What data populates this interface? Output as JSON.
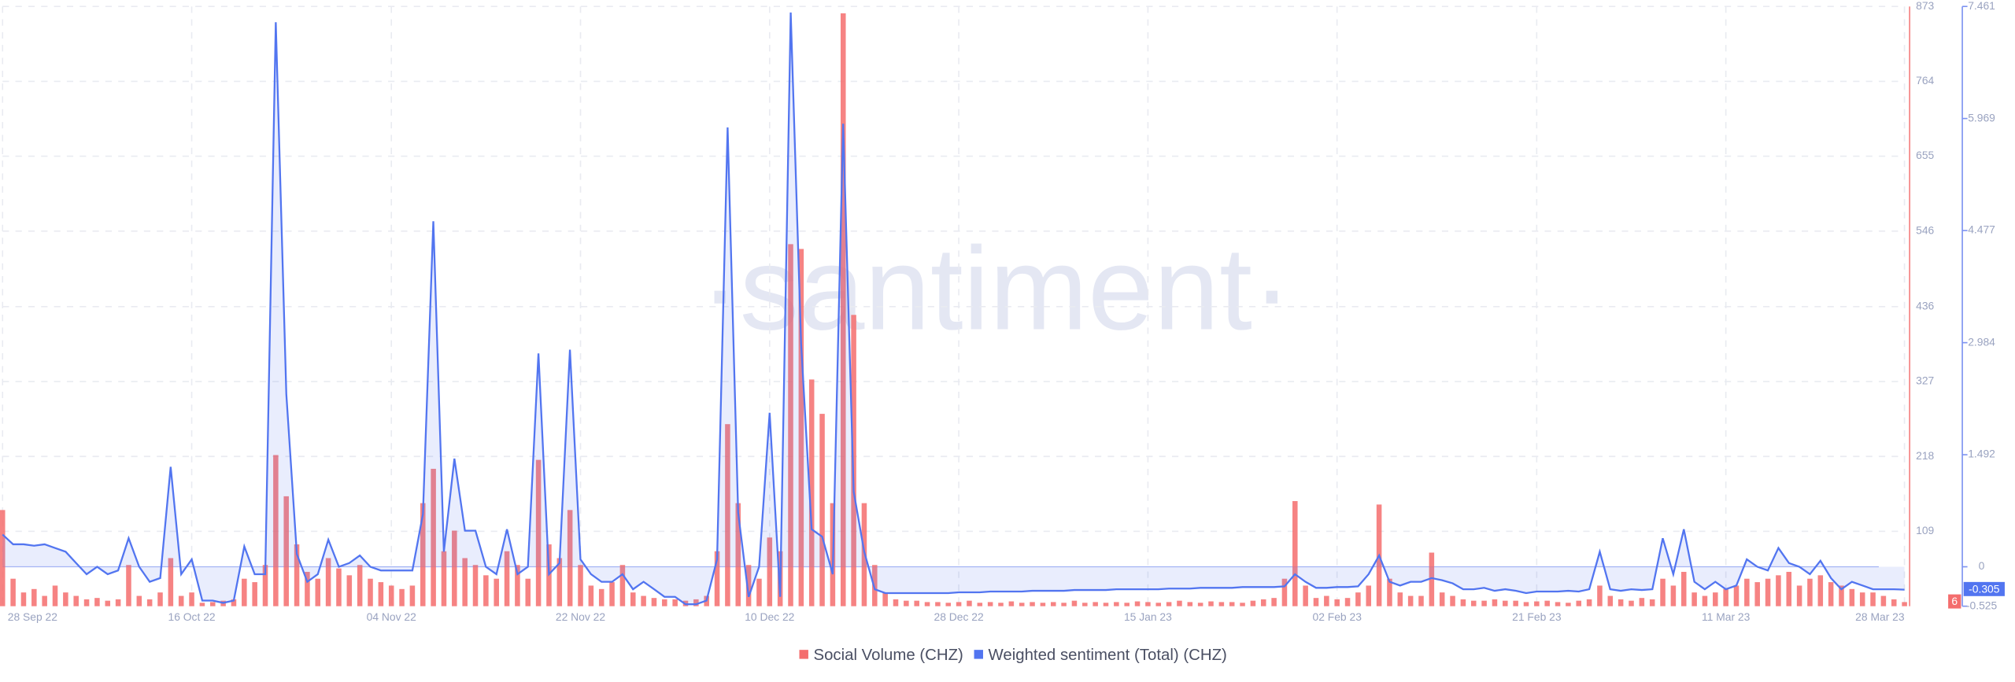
{
  "chart_data": {
    "type": "combo",
    "watermark": "·santiment·",
    "categories": [
      "28 Sep 22",
      null,
      null,
      null,
      null,
      null,
      null,
      null,
      null,
      null,
      null,
      null,
      null,
      null,
      null,
      null,
      null,
      null,
      "16 Oct 22",
      null,
      null,
      null,
      null,
      null,
      null,
      null,
      null,
      null,
      null,
      null,
      null,
      null,
      null,
      null,
      null,
      null,
      null,
      "04 Nov 22",
      null,
      null,
      null,
      null,
      null,
      null,
      null,
      null,
      null,
      null,
      null,
      null,
      null,
      null,
      null,
      null,
      null,
      "22 Nov 22",
      null,
      null,
      null,
      null,
      null,
      null,
      null,
      null,
      null,
      null,
      null,
      null,
      null,
      null,
      null,
      null,
      null,
      "10 Dec 22",
      null,
      null,
      null,
      null,
      null,
      null,
      null,
      null,
      null,
      null,
      null,
      null,
      null,
      null,
      null,
      null,
      null,
      "28 Dec 22",
      null,
      null,
      null,
      null,
      null,
      null,
      null,
      null,
      null,
      null,
      null,
      null,
      null,
      null,
      null,
      null,
      null,
      "15 Jan 23",
      null,
      null,
      null,
      null,
      null,
      null,
      null,
      null,
      null,
      null,
      null,
      null,
      null,
      null,
      null,
      null,
      null,
      "02 Feb 23",
      null,
      null,
      null,
      null,
      null,
      null,
      null,
      null,
      null,
      null,
      null,
      null,
      null,
      null,
      null,
      null,
      null,
      null,
      "21 Feb 23",
      null,
      null,
      null,
      null,
      null,
      null,
      null,
      null,
      null,
      null,
      null,
      null,
      null,
      null,
      null,
      null,
      null,
      "11 Mar 23",
      null,
      null,
      null,
      null,
      null,
      null,
      null,
      null,
      null,
      null,
      null,
      null,
      null,
      null,
      null,
      null,
      "28 Mar 23"
    ],
    "series": [
      {
        "name": "Social Volume (CHZ)",
        "type": "bar",
        "color": "#f46d6d",
        "values": [
          140,
          40,
          20,
          25,
          15,
          30,
          20,
          15,
          10,
          12,
          8,
          10,
          60,
          15,
          10,
          20,
          70,
          15,
          20,
          5,
          6,
          8,
          10,
          40,
          35,
          60,
          220,
          160,
          90,
          50,
          40,
          70,
          55,
          45,
          60,
          40,
          35,
          30,
          25,
          30,
          150,
          200,
          80,
          110,
          70,
          60,
          45,
          40,
          80,
          60,
          40,
          213,
          90,
          70,
          140,
          60,
          30,
          25,
          35,
          60,
          20,
          15,
          12,
          10,
          10,
          8,
          10,
          15,
          80,
          265,
          150,
          60,
          40,
          100,
          80,
          527,
          520,
          330,
          280,
          150,
          863,
          424,
          150,
          60,
          20,
          10,
          8,
          8,
          6,
          6,
          5,
          6,
          8,
          5,
          6,
          5,
          7,
          5,
          6,
          5,
          6,
          5,
          8,
          5,
          6,
          5,
          6,
          5,
          7,
          6,
          5,
          6,
          8,
          6,
          5,
          7,
          6,
          6,
          5,
          8,
          10,
          12,
          40,
          153,
          30,
          12,
          15,
          10,
          12,
          20,
          30,
          148,
          40,
          20,
          15,
          15,
          78,
          20,
          15,
          10,
          8,
          8,
          10,
          8,
          8,
          6,
          7,
          8,
          6,
          5,
          8,
          10,
          30,
          15,
          10,
          8,
          12,
          10,
          40,
          30,
          50,
          20,
          15,
          20,
          25,
          30,
          40,
          35,
          40,
          45,
          50,
          30,
          40,
          45,
          35,
          30,
          25,
          20,
          20,
          15,
          10,
          6
        ]
      },
      {
        "name": "Weighted sentiment (Total) (CHZ)",
        "type": "line",
        "axis": "y2",
        "color": "#5275f0",
        "values": [
          0.43,
          0.3,
          0.3,
          0.28,
          0.3,
          0.25,
          0.2,
          0.05,
          -0.1,
          0,
          -0.1,
          -0.05,
          0.38,
          0,
          -0.2,
          -0.15,
          1.33,
          -0.1,
          0.1,
          -0.45,
          -0.45,
          -0.48,
          -0.45,
          0.27,
          -0.1,
          -0.1,
          7.25,
          2.3,
          0.17,
          -0.2,
          -0.1,
          0.36,
          0,
          0.05,
          0.15,
          0,
          -0.05,
          -0.05,
          -0.05,
          -0.05,
          0.7,
          4.6,
          0.2,
          1.44,
          0.48,
          0.48,
          0,
          -0.1,
          0.5,
          -0.1,
          0,
          2.84,
          -0.1,
          0.05,
          2.89,
          0.1,
          -0.1,
          -0.2,
          -0.2,
          -0.1,
          -0.3,
          -0.2,
          -0.3,
          -0.4,
          -0.4,
          -0.5,
          -0.5,
          -0.45,
          0.1,
          5.85,
          0.72,
          -0.4,
          0,
          2.05,
          -0.4,
          7.38,
          2.97,
          0.5,
          0.4,
          -0.1,
          5.9,
          1,
          0.2,
          -0.3,
          -0.35,
          -0.35,
          -0.35,
          -0.35,
          -0.35,
          -0.35,
          -0.35,
          -0.34,
          -0.34,
          -0.34,
          -0.33,
          -0.33,
          -0.33,
          -0.33,
          -0.32,
          -0.32,
          -0.32,
          -0.32,
          -0.31,
          -0.31,
          -0.31,
          -0.31,
          -0.3,
          -0.3,
          -0.3,
          -0.3,
          -0.3,
          -0.29,
          -0.29,
          -0.29,
          -0.28,
          -0.28,
          -0.28,
          -0.28,
          -0.27,
          -0.27,
          -0.27,
          -0.27,
          -0.26,
          -0.1,
          -0.2,
          -0.28,
          -0.28,
          -0.27,
          -0.27,
          -0.26,
          -0.1,
          0.15,
          -0.2,
          -0.25,
          -0.2,
          -0.2,
          -0.15,
          -0.18,
          -0.22,
          -0.3,
          -0.3,
          -0.28,
          -0.32,
          -0.3,
          -0.32,
          -0.35,
          -0.33,
          -0.33,
          -0.33,
          -0.32,
          -0.33,
          -0.3,
          0.2,
          -0.3,
          -0.32,
          -0.3,
          -0.31,
          -0.3,
          0.38,
          -0.1,
          0.5,
          -0.2,
          -0.3,
          -0.2,
          -0.3,
          -0.25,
          0.1,
          0,
          -0.05,
          0.25,
          0.05,
          0,
          -0.1,
          0.08,
          -0.15,
          -0.3,
          -0.2,
          -0.25,
          -0.3,
          -0.3,
          -0.3,
          -0.305
        ]
      }
    ],
    "ylim": [
      0,
      873
    ],
    "yticks": [
      109,
      218,
      327,
      436,
      546,
      655,
      764,
      873
    ],
    "y2lim": [
      -0.525,
      7.461
    ],
    "y2ticks": [
      -0.525,
      0,
      1.492,
      2.984,
      4.477,
      5.969,
      7.461
    ],
    "grid": true
  }
}
